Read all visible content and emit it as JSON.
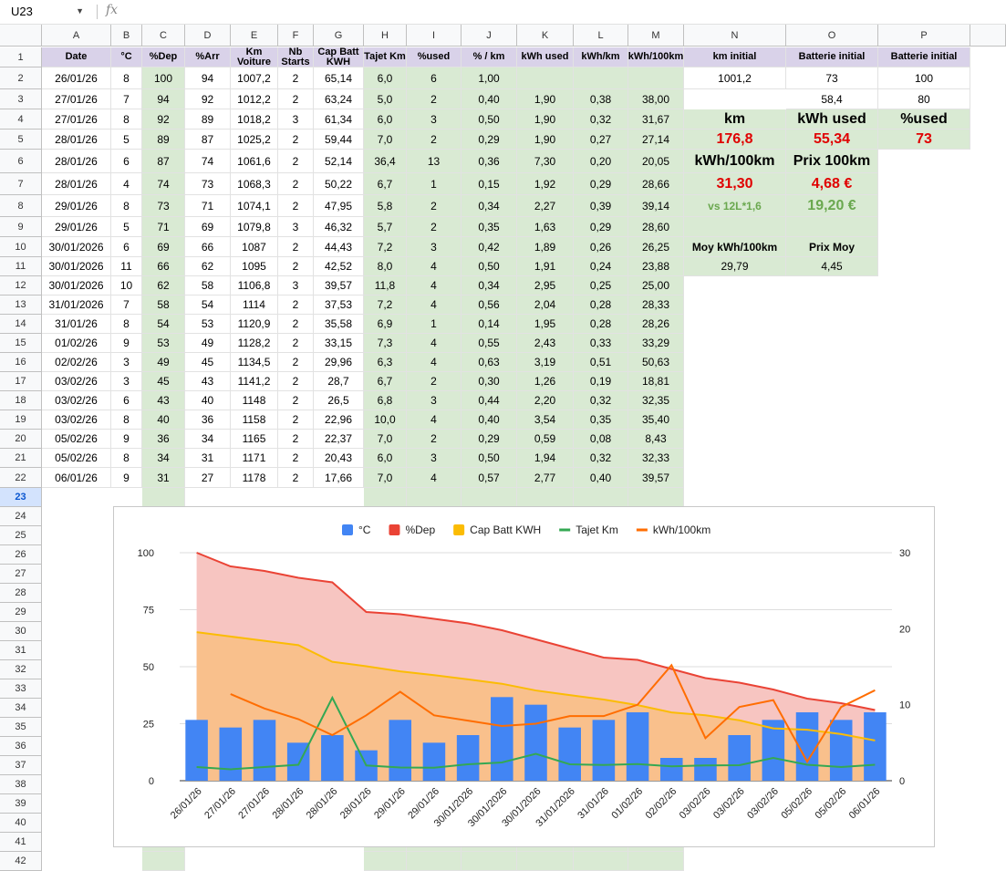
{
  "namebox": {
    "ref": "U23",
    "fx": "fx"
  },
  "columns": [
    "A",
    "B",
    "C",
    "D",
    "E",
    "F",
    "G",
    "H",
    "I",
    "J",
    "K",
    "L",
    "M",
    "N",
    "O",
    "P"
  ],
  "rows": [
    "1",
    "2",
    "3",
    "4",
    "5",
    "6",
    "7",
    "8",
    "9",
    "10",
    "11",
    "12",
    "13",
    "14",
    "15",
    "16",
    "17",
    "18",
    "19",
    "20",
    "21",
    "22",
    "23",
    "24",
    "25",
    "26",
    "27",
    "28",
    "29",
    "30",
    "31",
    "32",
    "33",
    "34",
    "35",
    "36",
    "37",
    "38",
    "39",
    "40",
    "41",
    "42"
  ],
  "headers": [
    "Date",
    "°C",
    "%Dep",
    "%Arr",
    "Km Voiture",
    "Nb Starts",
    "Cap Batt KWH",
    "Tajet Km",
    "%used",
    "% / km",
    "kWh used",
    "kWh/km",
    "kWh/100km",
    "km initial",
    "Batterie initial",
    "Batterie initial"
  ],
  "table": [
    [
      "26/01/26",
      "8",
      "100",
      "94",
      "1007,2",
      "2",
      "65,14",
      "6,0",
      "6",
      "1,00",
      "",
      "",
      ""
    ],
    [
      "27/01/26",
      "7",
      "94",
      "92",
      "1012,2",
      "2",
      "63,24",
      "5,0",
      "2",
      "0,40",
      "1,90",
      "0,38",
      "38,00"
    ],
    [
      "27/01/26",
      "8",
      "92",
      "89",
      "1018,2",
      "3",
      "61,34",
      "6,0",
      "3",
      "0,50",
      "1,90",
      "0,32",
      "31,67"
    ],
    [
      "28/01/26",
      "5",
      "89",
      "87",
      "1025,2",
      "2",
      "59,44",
      "7,0",
      "2",
      "0,29",
      "1,90",
      "0,27",
      "27,14"
    ],
    [
      "28/01/26",
      "6",
      "87",
      "74",
      "1061,6",
      "2",
      "52,14",
      "36,4",
      "13",
      "0,36",
      "7,30",
      "0,20",
      "20,05"
    ],
    [
      "28/01/26",
      "4",
      "74",
      "73",
      "1068,3",
      "2",
      "50,22",
      "6,7",
      "1",
      "0,15",
      "1,92",
      "0,29",
      "28,66"
    ],
    [
      "29/01/26",
      "8",
      "73",
      "71",
      "1074,1",
      "2",
      "47,95",
      "5,8",
      "2",
      "0,34",
      "2,27",
      "0,39",
      "39,14"
    ],
    [
      "29/01/26",
      "5",
      "71",
      "69",
      "1079,8",
      "3",
      "46,32",
      "5,7",
      "2",
      "0,35",
      "1,63",
      "0,29",
      "28,60"
    ],
    [
      "30/01/2026",
      "6",
      "69",
      "66",
      "1087",
      "2",
      "44,43",
      "7,2",
      "3",
      "0,42",
      "1,89",
      "0,26",
      "26,25"
    ],
    [
      "30/01/2026",
      "11",
      "66",
      "62",
      "1095",
      "2",
      "42,52",
      "8,0",
      "4",
      "0,50",
      "1,91",
      "0,24",
      "23,88"
    ],
    [
      "30/01/2026",
      "10",
      "62",
      "58",
      "1106,8",
      "3",
      "39,57",
      "11,8",
      "4",
      "0,34",
      "2,95",
      "0,25",
      "25,00"
    ],
    [
      "31/01/2026",
      "7",
      "58",
      "54",
      "1114",
      "2",
      "37,53",
      "7,2",
      "4",
      "0,56",
      "2,04",
      "0,28",
      "28,33"
    ],
    [
      "31/01/26",
      "8",
      "54",
      "53",
      "1120,9",
      "2",
      "35,58",
      "6,9",
      "1",
      "0,14",
      "1,95",
      "0,28",
      "28,26"
    ],
    [
      "01/02/26",
      "9",
      "53",
      "49",
      "1128,2",
      "2",
      "33,15",
      "7,3",
      "4",
      "0,55",
      "2,43",
      "0,33",
      "33,29"
    ],
    [
      "02/02/26",
      "3",
      "49",
      "45",
      "1134,5",
      "2",
      "29,96",
      "6,3",
      "4",
      "0,63",
      "3,19",
      "0,51",
      "50,63"
    ],
    [
      "03/02/26",
      "3",
      "45",
      "43",
      "1141,2",
      "2",
      "28,7",
      "6,7",
      "2",
      "0,30",
      "1,26",
      "0,19",
      "18,81"
    ],
    [
      "03/02/26",
      "6",
      "43",
      "40",
      "1148",
      "2",
      "26,5",
      "6,8",
      "3",
      "0,44",
      "2,20",
      "0,32",
      "32,35"
    ],
    [
      "03/02/26",
      "8",
      "40",
      "36",
      "1158",
      "2",
      "22,96",
      "10,0",
      "4",
      "0,40",
      "3,54",
      "0,35",
      "35,40"
    ],
    [
      "05/02/26",
      "9",
      "36",
      "34",
      "1165",
      "2",
      "22,37",
      "7,0",
      "2",
      "0,29",
      "0,59",
      "0,08",
      "8,43"
    ],
    [
      "05/02/26",
      "8",
      "34",
      "31",
      "1171",
      "2",
      "20,43",
      "6,0",
      "3",
      "0,50",
      "1,94",
      "0,32",
      "32,33"
    ],
    [
      "06/01/26",
      "9",
      "31",
      "27",
      "1178",
      "2",
      "17,66",
      "7,0",
      "4",
      "0,57",
      "2,77",
      "0,40",
      "39,57"
    ]
  ],
  "summary": {
    "n2": "1001,2",
    "o2": "73",
    "p2": "100",
    "o3": "58,4",
    "p3": "80",
    "km_label": "km",
    "kwh_used_label": "kWh used",
    "pct_used_label": "%used",
    "km_value": "176,8",
    "kwh_used_value": "55,34",
    "pct_used_value": "73",
    "kwh100_label": "kWh/100km",
    "prix100_label": "Prix 100km",
    "kwh100_value": "31,30",
    "prix100_value": "4,68 €",
    "vs_label": "vs 12L*1,6",
    "vs_value": "19,20 €",
    "moy_label": "Moy kWh/100km",
    "prixmoy_label": "Prix Moy",
    "moy_value": "29,79",
    "prixmoy_value": "4,45"
  },
  "chart_data": {
    "type": "combo",
    "title": "",
    "legend_position": "top",
    "categories": [
      "26/01/26",
      "27/01/26",
      "27/01/26",
      "28/01/26",
      "28/01/26",
      "28/01/26",
      "29/01/26",
      "29/01/26",
      "30/01/2026",
      "30/01/2026",
      "30/01/2026",
      "31/01/2026",
      "31/01/26",
      "01/02/26",
      "02/02/26",
      "03/02/26",
      "03/02/26",
      "03/02/26",
      "05/02/26",
      "05/02/26",
      "06/01/26"
    ],
    "left_axis": {
      "min": 0,
      "max": 100,
      "ticks": [
        0,
        25,
        50,
        75,
        100
      ]
    },
    "right_axis": {
      "min": 0,
      "max": 30,
      "ticks": [
        0,
        10,
        20,
        30
      ]
    },
    "grid": true,
    "series": [
      {
        "name": "°C",
        "kind": "bar",
        "axis": "right",
        "color": "#4285f4",
        "values": [
          8,
          7,
          8,
          5,
          6,
          4,
          8,
          5,
          6,
          11,
          10,
          7,
          8,
          9,
          3,
          3,
          6,
          8,
          9,
          8,
          9
        ]
      },
      {
        "name": "%Dep",
        "kind": "area",
        "axis": "left",
        "color": "#ea4335",
        "fill": "#f7c5c1",
        "values": [
          100,
          94,
          92,
          89,
          87,
          74,
          73,
          71,
          69,
          66,
          62,
          58,
          54,
          53,
          49,
          45,
          43,
          40,
          36,
          34,
          31
        ]
      },
      {
        "name": "Cap Batt KWH",
        "kind": "area",
        "axis": "left",
        "color": "#fbbc04",
        "fill": "#f9c08c",
        "values": [
          65.14,
          63.24,
          61.34,
          59.44,
          52.14,
          50.22,
          47.95,
          46.32,
          44.43,
          42.52,
          39.57,
          37.53,
          35.58,
          33.15,
          29.96,
          28.7,
          26.5,
          22.96,
          22.37,
          20.43,
          17.66
        ]
      },
      {
        "name": "Tajet Km",
        "kind": "line",
        "axis": "left",
        "color": "#34a853",
        "values": [
          6.0,
          5.0,
          6.0,
          7.0,
          36.4,
          6.7,
          5.8,
          5.7,
          7.2,
          8.0,
          11.8,
          7.2,
          6.9,
          7.3,
          6.3,
          6.7,
          6.8,
          10.0,
          7.0,
          6.0,
          7.0
        ]
      },
      {
        "name": "kWh/100km",
        "kind": "line",
        "axis": "right",
        "color": "#ff6d01",
        "values": [
          null,
          11.4,
          9.5,
          8.1,
          6.0,
          8.6,
          11.7,
          8.6,
          7.9,
          7.2,
          7.5,
          8.5,
          8.5,
          10.0,
          15.2,
          5.6,
          9.7,
          10.6,
          2.5,
          9.7,
          11.9
        ]
      }
    ]
  }
}
